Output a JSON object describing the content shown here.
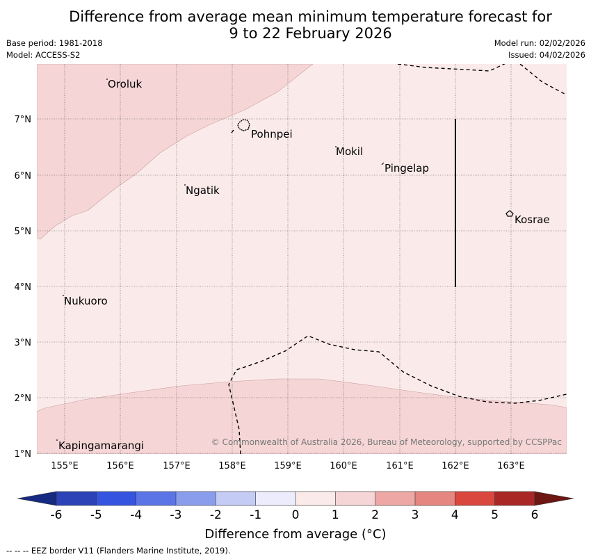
{
  "title": {
    "line1": "Difference from average mean minimum temperature forecast for",
    "line2": "9 to 22 February 2026"
  },
  "meta": {
    "base_period": "Base period: 1981-2018",
    "model": "Model: ACCESS-S2",
    "model_run": "Model run: 02/02/2026",
    "issued": "Issued: 04/02/2026"
  },
  "map": {
    "lon_labels": [
      "155°E",
      "156°E",
      "157°E",
      "158°E",
      "159°E",
      "160°E",
      "161°E",
      "162°E",
      "163°E"
    ],
    "lat_labels": [
      "7°N",
      "6°N",
      "5°N",
      "4°N",
      "3°N",
      "2°N",
      "1°N"
    ],
    "places": {
      "oroluk": "Oroluk",
      "pohnpei": "Pohnpei",
      "mokil": "Mokil",
      "pingelap": "Pingelap",
      "ngatik": "Ngatik",
      "kosrae": "Kosrae",
      "nukuoro": "Nukuoro",
      "kapingamarangi": "Kapingamarangi"
    },
    "copyright": "© Commonwealth of Australia 2026, Bureau of Meteorology, supported by CCSPPac",
    "background_category": "0 to 1 °C",
    "shaded_category": "1 to 2 °C"
  },
  "colorbar": {
    "ticks": [
      "-6",
      "-5",
      "-4",
      "-3",
      "-2",
      "-1",
      "0",
      "1",
      "2",
      "3",
      "4",
      "5",
      "6"
    ],
    "colors": [
      "#152a80",
      "#2b43b7",
      "#3555e0",
      "#5c75e6",
      "#8a9ded",
      "#c4ccf6",
      "#ececfc",
      "#fbeaea",
      "#f5d5d5",
      "#eda8a5",
      "#e58680",
      "#d9473e",
      "#a92725",
      "#6e1612"
    ],
    "label": "Difference from average (°C)"
  },
  "footnote": "--  --  -- EEZ border V11 (Flanders Marine Institute, 2019)."
}
